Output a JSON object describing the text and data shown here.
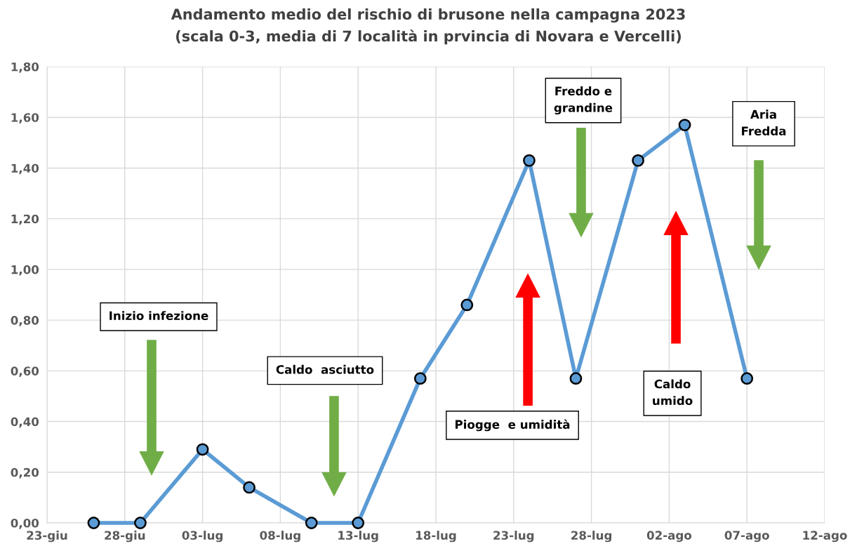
{
  "chart_data": {
    "type": "line",
    "title": "Andamento medio del rischio di brusone nella campagna 2023\n(scala 0-3, media di 7 località in prvincia di Novara e Vercelli)",
    "x": [
      "2023-06-26",
      "2023-06-29",
      "2023-07-03",
      "2023-07-06",
      "2023-07-10",
      "2023-07-13",
      "2023-07-17",
      "2023-07-20",
      "2023-07-24",
      "2023-07-27",
      "2023-07-31",
      "2023-08-03",
      "2023-08-07"
    ],
    "series": [
      {
        "color": "#5b9bd5",
        "values": [
          0,
          0,
          0.29,
          0.14,
          0,
          0,
          0.57,
          0.86,
          1.43,
          0.57,
          1.43,
          1.57,
          0.57
        ]
      }
    ],
    "xlim": [
      "2023-06-23",
      "2023-08-12"
    ],
    "xticks": [
      {
        "value": "2023-06-23",
        "label": "23-giu"
      },
      {
        "value": "2023-06-28",
        "label": "28-giu"
      },
      {
        "value": "2023-07-03",
        "label": "03-lug"
      },
      {
        "value": "2023-07-08",
        "label": "08-lug"
      },
      {
        "value": "2023-07-13",
        "label": "13-lug"
      },
      {
        "value": "2023-07-18",
        "label": "18-lug"
      },
      {
        "value": "2023-07-23",
        "label": "23-lug"
      },
      {
        "value": "2023-07-28",
        "label": "28-lug"
      },
      {
        "value": "2023-08-02",
        "label": "02-ago"
      },
      {
        "value": "2023-08-07",
        "label": "07-ago"
      },
      {
        "value": "2023-08-12",
        "label": "12-ago"
      }
    ],
    "ylim": [
      0,
      1.8
    ],
    "yticks": [
      {
        "value": 0,
        "label": "0,00"
      },
      {
        "value": 0.2,
        "label": "0,20"
      },
      {
        "value": 0.4,
        "label": "0,40"
      },
      {
        "value": 0.6,
        "label": "0,60"
      },
      {
        "value": 0.8,
        "label": "0,80"
      },
      {
        "value": 1.0,
        "label": "1,00"
      },
      {
        "value": 1.2,
        "label": "1,20"
      },
      {
        "value": 1.4,
        "label": "1,40"
      },
      {
        "value": 1.6,
        "label": "1,60"
      },
      {
        "value": 1.8,
        "label": "1,80"
      }
    ],
    "annotations": [
      "Inizio infezione",
      "Caldo  asciutto",
      "Piogge  e umidità",
      "Freddo e\ngrandine",
      "Caldo\numido",
      "Aria\nFredda"
    ],
    "grid": true,
    "marker": "circle",
    "line_style": "solid",
    "legend": false
  }
}
